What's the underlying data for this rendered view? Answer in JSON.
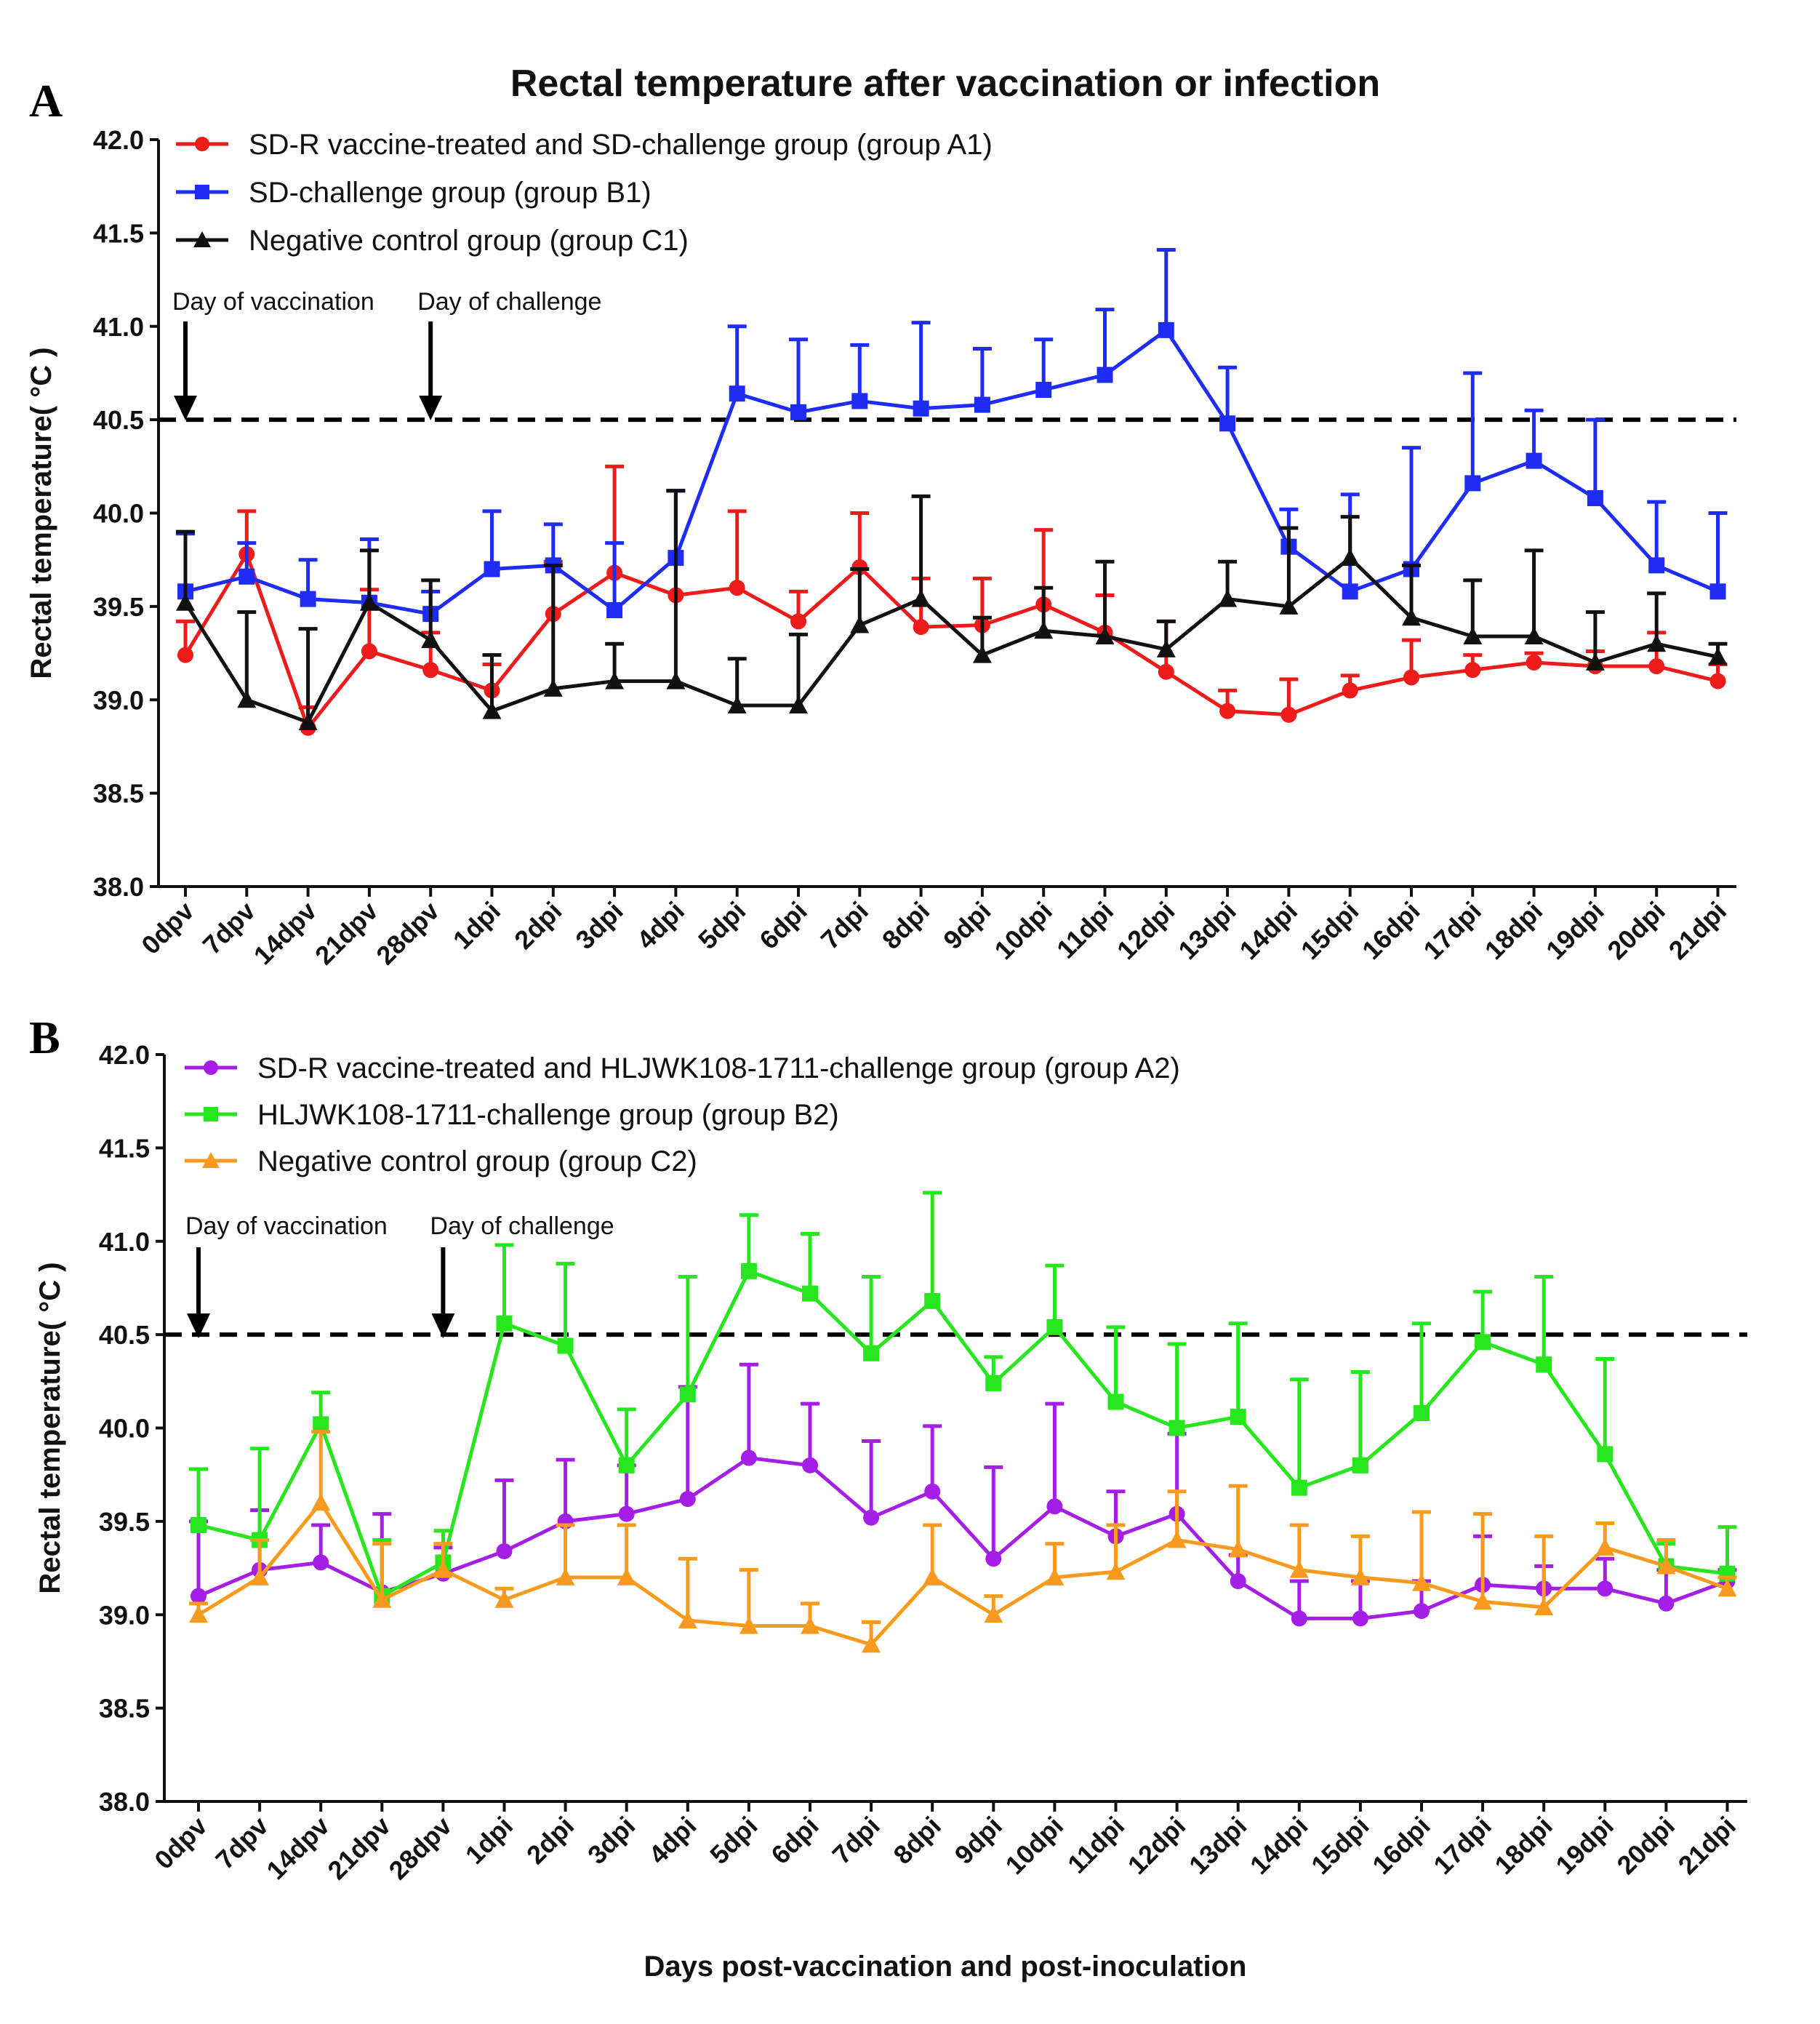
{
  "figure": {
    "title": "Rectal temperature after vaccination or infection",
    "xlabel": "Days post-vaccination and post-inoculation"
  },
  "colors": {
    "red": "#ee1b1b",
    "blue": "#1e2cf5",
    "black": "#111111",
    "purple": "#a41ee6",
    "green": "#27e61e",
    "orange": "#f79a1e"
  },
  "chart_data": [
    {
      "panel": "A",
      "type": "line",
      "title": "Rectal temperature after vaccination or infection",
      "xlabel": "",
      "ylabel": "Rectal temperature( °C )",
      "ylim": [
        38.0,
        42.0
      ],
      "yticks": [
        "38.0",
        "38.5",
        "39.0",
        "39.5",
        "40.0",
        "40.5",
        "41.0",
        "41.5",
        "42.0"
      ],
      "categories": [
        "0dpv",
        "7dpv",
        "14dpv",
        "21dpv",
        "28dpv",
        "1dpi",
        "2dpi",
        "3dpi",
        "4dpi",
        "5dpi",
        "6dpi",
        "7dpi",
        "8dpi",
        "9dpi",
        "10dpi",
        "11dpi",
        "12dpi",
        "13dpi",
        "14dpi",
        "15dpi",
        "16dpi",
        "17dpi",
        "18dpi",
        "19dpi",
        "20dpi",
        "21dpi"
      ],
      "threshold": 40.5,
      "annotations": [
        {
          "text": "Day of vaccination",
          "category_index": 0
        },
        {
          "text": "Day of challenge",
          "category_index": 4
        }
      ],
      "series": [
        {
          "name": "SD-R vaccine-treated and SD-challenge group (group A1)",
          "color_key": "red",
          "marker": "circle",
          "values": [
            39.24,
            39.78,
            38.85,
            39.26,
            39.16,
            39.05,
            39.46,
            39.68,
            39.56,
            39.6,
            39.42,
            39.71,
            39.39,
            39.4,
            39.51,
            39.36,
            39.15,
            38.94,
            38.92,
            39.05,
            39.12,
            39.16,
            39.2,
            39.18,
            39.18,
            39.1
          ],
          "errors": [
            0.18,
            0.23,
            0.11,
            0.33,
            0.2,
            0.14,
            0.28,
            0.57,
            0.56,
            0.41,
            0.16,
            0.29,
            0.26,
            0.25,
            0.4,
            0.2,
            0.27,
            0.11,
            0.19,
            0.08,
            0.2,
            0.08,
            0.05,
            0.08,
            0.18,
            0.09
          ]
        },
        {
          "name": "SD-challenge group  (group B1)",
          "color_key": "blue",
          "marker": "square",
          "values": [
            39.58,
            39.66,
            39.54,
            39.52,
            39.46,
            39.7,
            39.72,
            39.48,
            39.76,
            40.64,
            40.54,
            40.6,
            40.56,
            40.58,
            40.66,
            40.74,
            40.98,
            40.48,
            39.82,
            39.58,
            39.7,
            40.16,
            40.28,
            40.08,
            39.72,
            39.58
          ],
          "errors": [
            0.31,
            0.18,
            0.21,
            0.34,
            0.12,
            0.31,
            0.22,
            0.36,
            0.36,
            0.36,
            0.39,
            0.3,
            0.46,
            0.3,
            0.27,
            0.35,
            0.43,
            0.3,
            0.2,
            0.52,
            0.65,
            0.59,
            0.27,
            0.42,
            0.34,
            0.42
          ]
        },
        {
          "name": "Negative control group  (group C1)",
          "color_key": "black",
          "marker": "triangle",
          "values": [
            39.52,
            39.0,
            38.88,
            39.52,
            39.32,
            38.94,
            39.06,
            39.1,
            39.1,
            38.97,
            38.97,
            39.4,
            39.54,
            39.24,
            39.37,
            39.34,
            39.27,
            39.54,
            39.5,
            39.76,
            39.44,
            39.34,
            39.34,
            39.2,
            39.3,
            39.23
          ],
          "errors": [
            0.38,
            0.47,
            0.5,
            0.28,
            0.32,
            0.3,
            0.66,
            0.2,
            1.02,
            0.25,
            0.38,
            0.3,
            0.55,
            0.2,
            0.23,
            0.4,
            0.15,
            0.2,
            0.42,
            0.22,
            0.28,
            0.3,
            0.46,
            0.27,
            0.27,
            0.07
          ]
        }
      ]
    },
    {
      "panel": "B",
      "type": "line",
      "title": "",
      "xlabel": "Days post-vaccination and post-inoculation",
      "ylabel": "Rectal temperature( °C )",
      "ylim": [
        38.0,
        42.0
      ],
      "yticks": [
        "38.0",
        "38.5",
        "39.0",
        "39.5",
        "40.0",
        "40.5",
        "41.0",
        "41.5",
        "42.0"
      ],
      "categories": [
        "0dpv",
        "7dpv",
        "14dpv",
        "21dpv",
        "28dpv",
        "1dpi",
        "2dpi",
        "3dpi",
        "4dpi",
        "5dpi",
        "6dpi",
        "7dpi",
        "8dpi",
        "9dpi",
        "10dpi",
        "11dpi",
        "12dpi",
        "13dpi",
        "14dpi",
        "15dpi",
        "16dpi",
        "17dpi",
        "18dpi",
        "19dpi",
        "20dpi",
        "21dpi"
      ],
      "threshold": 40.5,
      "annotations": [
        {
          "text": "Day of vaccination",
          "category_index": 0
        },
        {
          "text": "Day of challenge",
          "category_index": 4
        }
      ],
      "series": [
        {
          "name": "SD-R vaccine-treated and HLJWK108-1711-challenge group (group A2)",
          "color_key": "purple",
          "marker": "circle",
          "values": [
            39.1,
            39.24,
            39.28,
            39.12,
            39.22,
            39.34,
            39.5,
            39.54,
            39.62,
            39.84,
            39.8,
            39.52,
            39.66,
            39.3,
            39.58,
            39.42,
            39.54,
            39.18,
            38.98,
            38.98,
            39.02,
            39.16,
            39.14,
            39.14,
            39.06,
            39.18
          ],
          "errors": [
            0.4,
            0.32,
            0.2,
            0.42,
            0.14,
            0.38,
            0.33,
            0.26,
            0.6,
            0.5,
            0.33,
            0.41,
            0.35,
            0.49,
            0.55,
            0.24,
            0.43,
            0.14,
            0.2,
            0.2,
            0.16,
            0.26,
            0.12,
            0.16,
            0.18,
            0.06
          ]
        },
        {
          "name": "HLJWK108-1711-challenge group  (group B2)",
          "color_key": "green",
          "marker": "square",
          "values": [
            39.48,
            39.4,
            40.02,
            39.1,
            39.28,
            40.56,
            40.44,
            39.8,
            40.18,
            40.84,
            40.72,
            40.4,
            40.68,
            40.24,
            40.54,
            40.14,
            40.0,
            40.06,
            39.68,
            39.8,
            40.08,
            40.46,
            40.34,
            39.86,
            39.26,
            39.22
          ],
          "errors": [
            0.3,
            0.49,
            0.17,
            0.3,
            0.17,
            0.42,
            0.44,
            0.3,
            0.63,
            0.3,
            0.32,
            0.41,
            0.58,
            0.14,
            0.33,
            0.4,
            0.45,
            0.5,
            0.58,
            0.5,
            0.48,
            0.27,
            0.47,
            0.51,
            0.12,
            0.25
          ]
        },
        {
          "name": "Negative control group  (group C2)",
          "color_key": "orange",
          "marker": "triangle",
          "values": [
            39.0,
            39.2,
            39.6,
            39.08,
            39.24,
            39.08,
            39.2,
            39.2,
            38.97,
            38.94,
            38.94,
            38.84,
            39.2,
            39.0,
            39.2,
            39.23,
            39.4,
            39.35,
            39.24,
            39.2,
            39.17,
            39.07,
            39.04,
            39.36,
            39.26,
            39.14
          ],
          "errors": [
            0.06,
            0.2,
            0.38,
            0.3,
            0.14,
            0.06,
            0.28,
            0.28,
            0.33,
            0.3,
            0.12,
            0.12,
            0.28,
            0.1,
            0.18,
            0.25,
            0.26,
            0.34,
            0.24,
            0.22,
            0.38,
            0.47,
            0.38,
            0.13,
            0.14,
            0.06
          ]
        }
      ]
    }
  ]
}
